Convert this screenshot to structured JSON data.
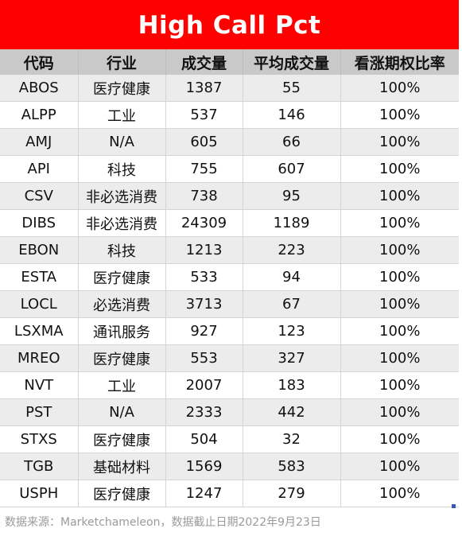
{
  "title": "High Call Pct",
  "columns": [
    "代码",
    "行业",
    "成交量",
    "平均成交量",
    "看涨期权比率"
  ],
  "rows": [
    [
      "ABOS",
      "医疗健康",
      "1387",
      "55",
      "100%"
    ],
    [
      "ALPP",
      "工业",
      "537",
      "146",
      "100%"
    ],
    [
      "AMJ",
      "N/A",
      "605",
      "66",
      "100%"
    ],
    [
      "API",
      "科技",
      "755",
      "607",
      "100%"
    ],
    [
      "CSV",
      "非必选消费",
      "738",
      "95",
      "100%"
    ],
    [
      "DIBS",
      "非必选消费",
      "24309",
      "1189",
      "100%"
    ],
    [
      "EBON",
      "科技",
      "1213",
      "223",
      "100%"
    ],
    [
      "ESTA",
      "医疗健康",
      "533",
      "94",
      "100%"
    ],
    [
      "LOCL",
      "必选消费",
      "3713",
      "67",
      "100%"
    ],
    [
      "LSXMA",
      "通讯服务",
      "927",
      "123",
      "100%"
    ],
    [
      "MREO",
      "医疗健康",
      "553",
      "327",
      "100%"
    ],
    [
      "NVT",
      "工业",
      "2007",
      "183",
      "100%"
    ],
    [
      "PST",
      "N/A",
      "2333",
      "442",
      "100%"
    ],
    [
      "STXS",
      "医疗健康",
      "504",
      "32",
      "100%"
    ],
    [
      "TGB",
      "基础材料",
      "1569",
      "583",
      "100%"
    ],
    [
      "USPH",
      "医疗健康",
      "1247",
      "279",
      "100%"
    ]
  ],
  "source": "数据来源：Marketchameleon，数据截止日期2022年9月23日",
  "colors": {
    "title_bg": "#ff0000",
    "header_bg": "#c9c9c9",
    "stripe": "#ececec"
  }
}
